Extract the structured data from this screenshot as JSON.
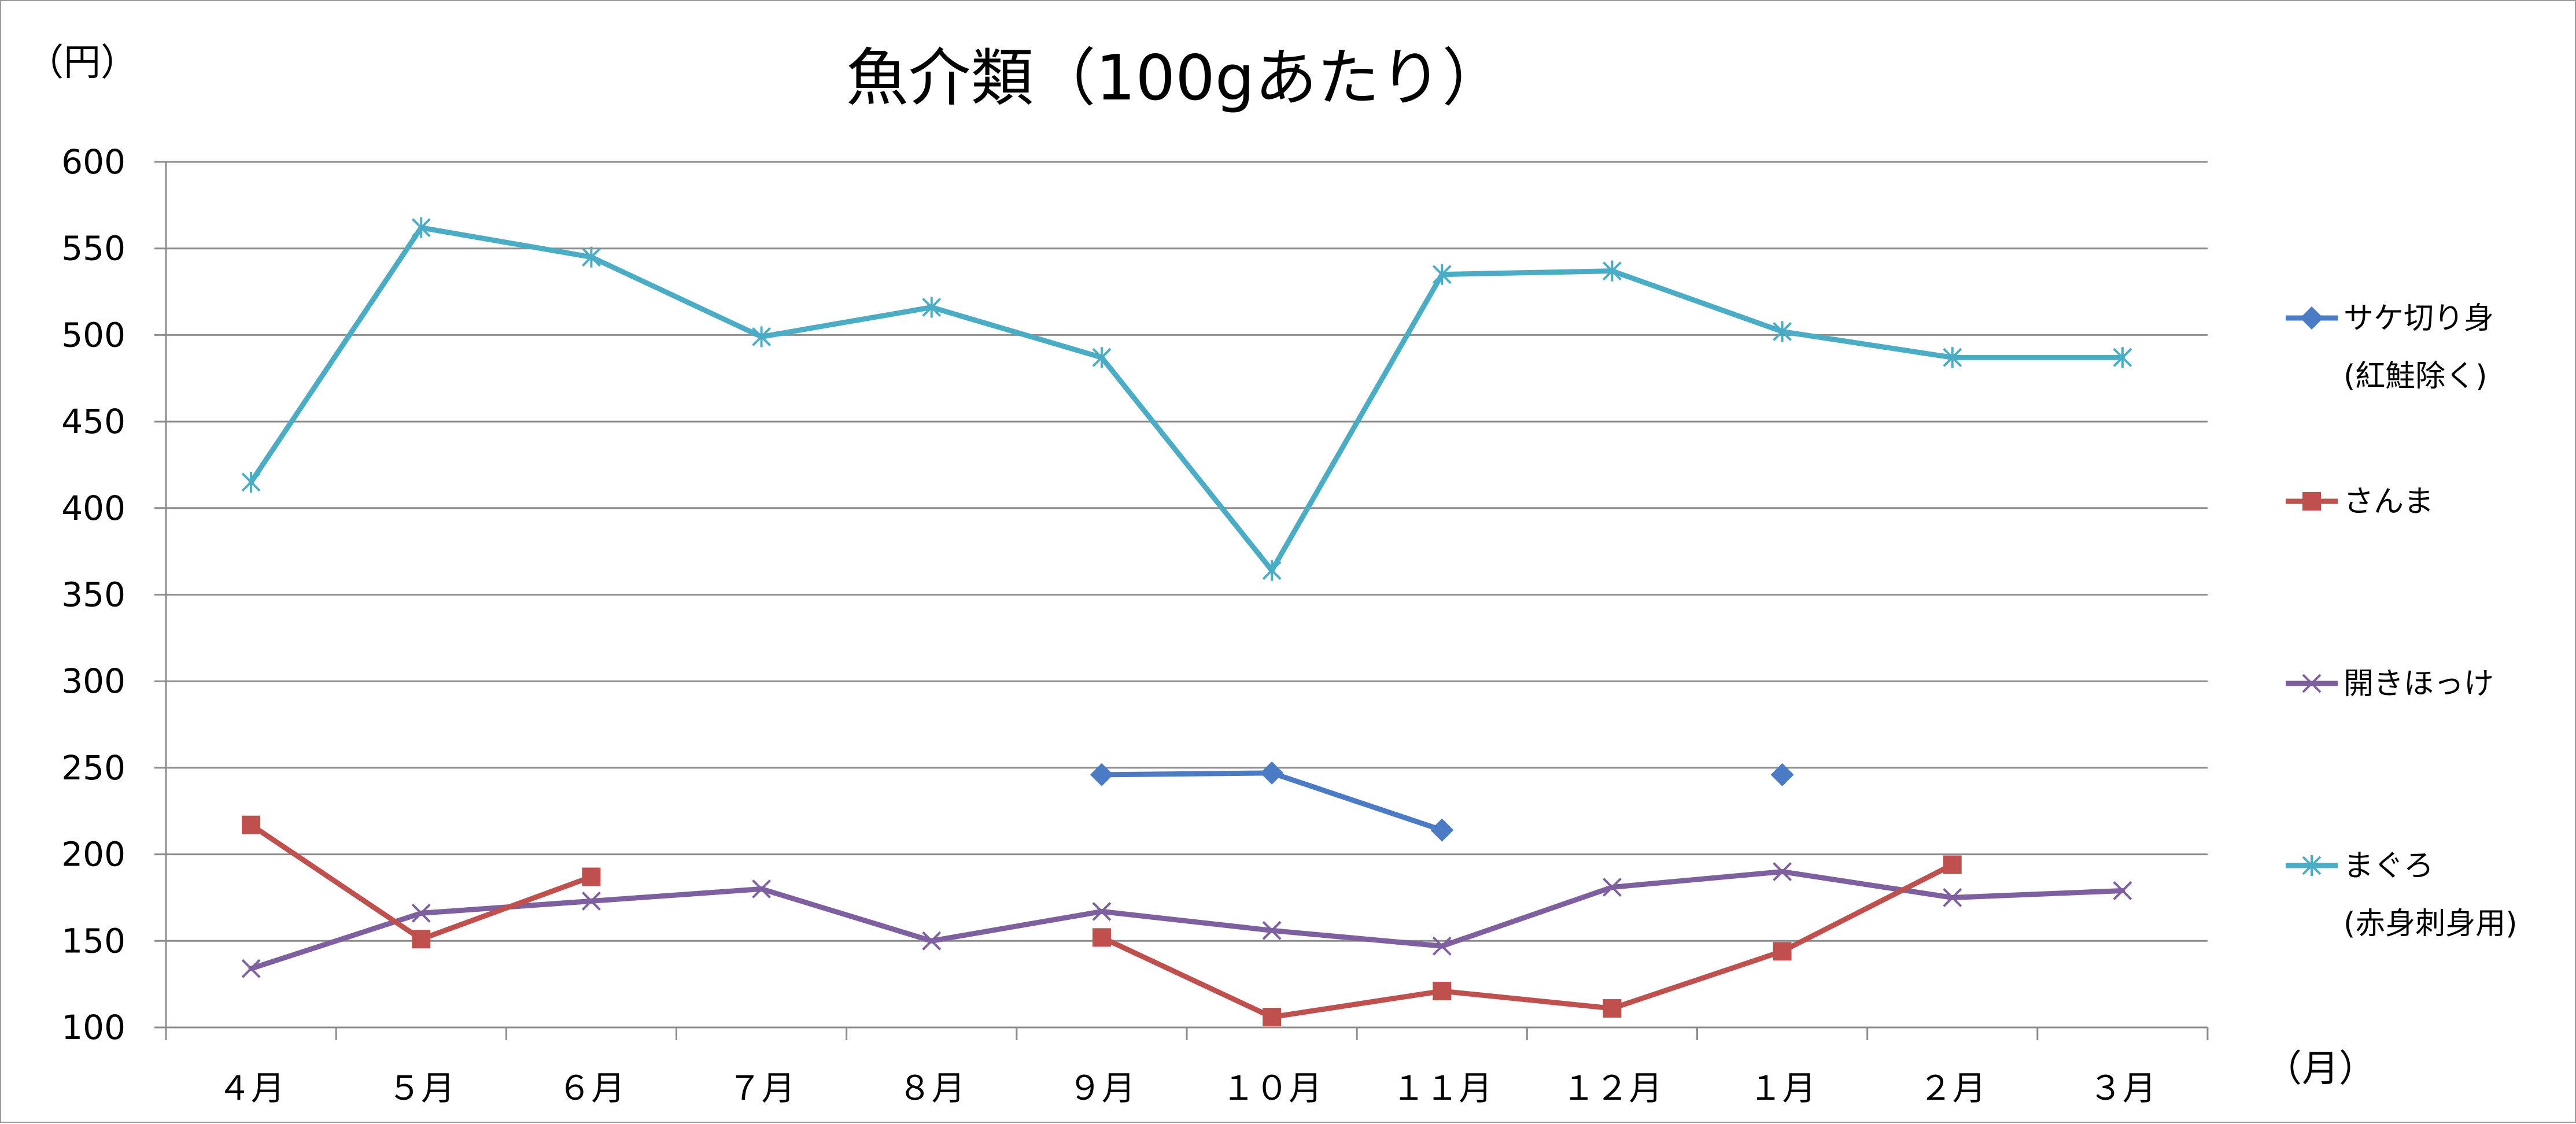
{
  "chart_data": {
    "type": "line",
    "title": "魚介類（100gあたり）",
    "ylabel": "（円）",
    "xlabel": "（月）",
    "ylim": [
      100,
      600
    ],
    "yticks": [
      100,
      150,
      200,
      250,
      300,
      350,
      400,
      450,
      500,
      550,
      600
    ],
    "ytick_labels": [
      "100",
      "150",
      "200",
      "250",
      "300",
      "350",
      "400",
      "450",
      "500",
      "550",
      "600"
    ],
    "grid": true,
    "legend_position": "right",
    "categories": [
      "４月",
      "５月",
      "６月",
      "７月",
      "８月",
      "９月",
      "１０月",
      "１１月",
      "１２月",
      "１月",
      "２月",
      "３月"
    ],
    "series": [
      {
        "name": "サケ切り身",
        "name_line2": "(紅鮭除く)",
        "color": "#4a7bc4",
        "marker": "diamond",
        "values": [
          null,
          null,
          null,
          null,
          null,
          246,
          247,
          214,
          null,
          246,
          null,
          null
        ]
      },
      {
        "name": "さんま",
        "name_line2": "",
        "color": "#c0504d",
        "marker": "square",
        "values": [
          217,
          151,
          187,
          null,
          null,
          152,
          106,
          121,
          111,
          144,
          194,
          null
        ]
      },
      {
        "name": "開きほっけ",
        "name_line2": "",
        "color": "#7e5fa0",
        "marker": "x",
        "values": [
          134,
          166,
          173,
          180,
          150,
          167,
          156,
          147,
          181,
          190,
          175,
          179
        ]
      },
      {
        "name": "まぐろ",
        "name_line2": "(赤身刺身用)",
        "color": "#4aacc5",
        "marker": "asterisk",
        "values": [
          415,
          562,
          545,
          499,
          516,
          487,
          364,
          535,
          537,
          502,
          487,
          487
        ]
      }
    ]
  }
}
